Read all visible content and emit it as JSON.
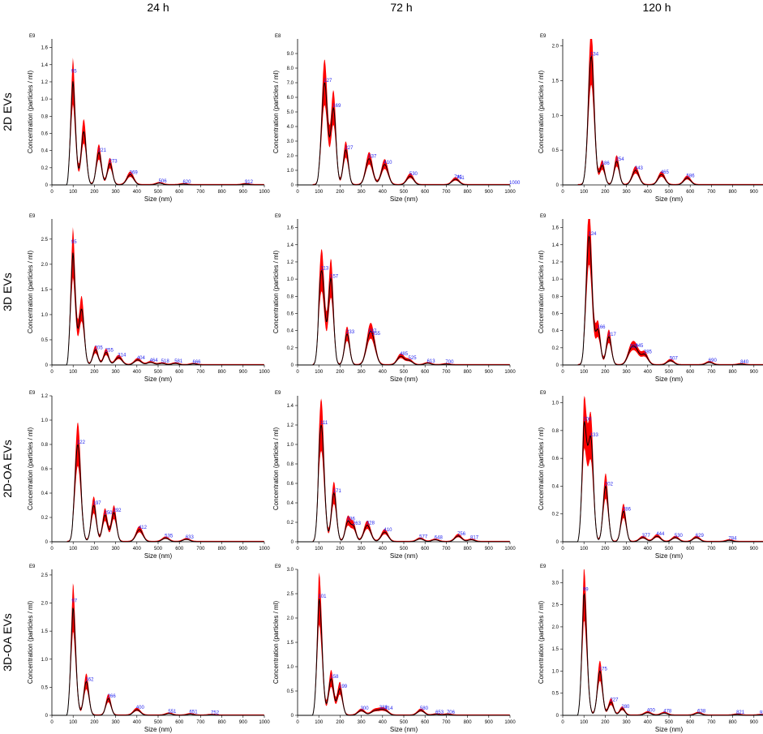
{
  "figure": {
    "columns": [
      "24 h",
      "72 h",
      "120 h"
    ],
    "rows": [
      "2D EVs",
      "3D EVs",
      "2D-OA EVs",
      "3D-OA EVs"
    ]
  },
  "chart_data": [
    {
      "type": "line",
      "row": 0,
      "col": 0,
      "xlabel": "Size (nm)",
      "ylabel": "Concentration (particles / ml)",
      "exponent": "E9",
      "xlim": [
        0,
        1000
      ],
      "ylim": [
        0,
        1.7
      ],
      "yticks": [
        0,
        0.2,
        0.4,
        0.6,
        0.8,
        1.0,
        1.2,
        1.4,
        1.6
      ],
      "peaks": [
        [
          95,
          1.3,
          "95"
        ],
        [
          150,
          0.62,
          ""
        ],
        [
          221,
          0.38,
          "221"
        ],
        [
          273,
          0.25,
          "273"
        ],
        [
          369,
          0.12,
          "369"
        ],
        [
          506,
          0.02,
          "506"
        ],
        [
          620,
          0.01,
          "620"
        ],
        [
          912,
          0.01,
          "912"
        ]
      ],
      "peak_labels": [
        [
          95,
          1.3,
          "95"
        ],
        [
          221,
          0.38,
          "221"
        ],
        [
          273,
          0.25,
          "273"
        ],
        [
          369,
          0.12,
          "369"
        ],
        [
          506,
          0.02,
          "506"
        ],
        [
          620,
          0.01,
          "620"
        ],
        [
          912,
          0.01,
          "912"
        ]
      ]
    },
    {
      "type": "line",
      "row": 0,
      "col": 1,
      "xlabel": "Size (nm)",
      "ylabel": "Concentration (particles / ml)",
      "exponent": "E8",
      "xlim": [
        0,
        1000
      ],
      "ylim": [
        0,
        10
      ],
      "yticks": [
        0,
        1.0,
        2.0,
        3.0,
        4.0,
        5.0,
        6.0,
        7.0,
        8.0,
        9.0
      ],
      "peaks": [
        [
          127,
          7.0,
          ""
        ],
        [
          169,
          5.2,
          ""
        ],
        [
          227,
          2.4,
          ""
        ],
        [
          337,
          1.8,
          ""
        ],
        [
          410,
          1.4,
          ""
        ],
        [
          530,
          0.6,
          ""
        ],
        [
          741,
          0.3,
          ""
        ],
        [
          751,
          0.1,
          ""
        ],
        [
          1000,
          0.0,
          ""
        ]
      ],
      "peak_labels": [
        [
          127,
          7.0,
          "127"
        ],
        [
          169,
          5.2,
          "169"
        ],
        [
          227,
          2.4,
          "227"
        ],
        [
          337,
          1.8,
          "337"
        ],
        [
          410,
          1.4,
          "410"
        ],
        [
          530,
          0.6,
          "530"
        ],
        [
          741,
          0.3,
          "741"
        ],
        [
          751,
          0.1,
          "751"
        ],
        [
          1000,
          0.0,
          "1000"
        ]
      ]
    },
    {
      "type": "line",
      "row": 0,
      "col": 2,
      "xlabel": "Size (nm)",
      "ylabel": "Concentration (particles / ml)",
      "exponent": "E9",
      "xlim": [
        0,
        1000
      ],
      "ylim": [
        0,
        2.1
      ],
      "yticks": [
        0,
        0.5,
        1.0,
        1.5,
        2.0
      ],
      "peaks": [
        [
          134,
          1.85,
          ""
        ],
        [
          186,
          0.28,
          ""
        ],
        [
          254,
          0.34,
          ""
        ],
        [
          343,
          0.21,
          ""
        ],
        [
          465,
          0.15,
          ""
        ],
        [
          586,
          0.1,
          ""
        ],
        [
          1000,
          0.0,
          ""
        ]
      ],
      "peak_labels": [
        [
          134,
          1.85,
          "134"
        ],
        [
          186,
          0.28,
          "186"
        ],
        [
          254,
          0.34,
          "254"
        ],
        [
          343,
          0.21,
          "343"
        ],
        [
          465,
          0.15,
          "465"
        ],
        [
          586,
          0.1,
          "586"
        ],
        [
          1000,
          0.0,
          "1000"
        ]
      ]
    },
    {
      "type": "line",
      "row": 1,
      "col": 0,
      "xlabel": "Size (nm)",
      "ylabel": "Concentration (particles / ml)",
      "exponent": "E9",
      "xlim": [
        0,
        1000
      ],
      "ylim": [
        0,
        2.9
      ],
      "yticks": [
        0,
        0.5,
        1.0,
        1.5,
        2.0,
        2.5
      ],
      "peaks": [
        [
          95,
          2.4,
          ""
        ],
        [
          140,
          1.1,
          ""
        ],
        [
          205,
          0.3,
          ""
        ],
        [
          255,
          0.25,
          ""
        ],
        [
          314,
          0.15,
          ""
        ],
        [
          404,
          0.1,
          ""
        ],
        [
          464,
          0.05,
          ""
        ],
        [
          518,
          0.03,
          ""
        ],
        [
          581,
          0.03,
          ""
        ],
        [
          666,
          0.02,
          ""
        ]
      ],
      "peak_labels": [
        [
          95,
          2.4,
          "95"
        ],
        [
          205,
          0.3,
          "205"
        ],
        [
          255,
          0.25,
          "255"
        ],
        [
          314,
          0.15,
          "314"
        ],
        [
          404,
          0.1,
          "404"
        ],
        [
          464,
          0.05,
          "464"
        ],
        [
          518,
          0.03,
          "518"
        ],
        [
          581,
          0.03,
          "581"
        ],
        [
          666,
          0.02,
          "666"
        ]
      ]
    },
    {
      "type": "line",
      "row": 1,
      "col": 1,
      "xlabel": "Size (nm)",
      "ylabel": "Concentration (particles / ml)",
      "exponent": "E9",
      "xlim": [
        0,
        1000
      ],
      "ylim": [
        0,
        1.7
      ],
      "yticks": [
        0,
        0.2,
        0.4,
        0.6,
        0.8,
        1.0,
        1.2,
        1.4,
        1.6
      ],
      "peaks": [
        [
          113,
          1.1,
          ""
        ],
        [
          157,
          1.0,
          ""
        ],
        [
          233,
          0.36,
          ""
        ],
        [
          337,
          0.26,
          ""
        ],
        [
          355,
          0.2,
          ""
        ],
        [
          485,
          0.1,
          ""
        ],
        [
          525,
          0.05,
          ""
        ],
        [
          613,
          0.02,
          ""
        ],
        [
          700,
          0.01,
          ""
        ]
      ],
      "peak_labels": [
        [
          113,
          1.1,
          "113"
        ],
        [
          157,
          1.0,
          "157"
        ],
        [
          233,
          0.36,
          "233"
        ],
        [
          337,
          0.26,
          "337"
        ],
        [
          355,
          0.2,
          "355"
        ],
        [
          485,
          0.1,
          "485"
        ],
        [
          525,
          0.05,
          "525"
        ],
        [
          613,
          0.02,
          "613"
        ],
        [
          700,
          0.01,
          "700"
        ]
      ]
    },
    {
      "type": "line",
      "row": 1,
      "col": 2,
      "xlabel": "Size (nm)",
      "ylabel": "Concentration (particles / ml)",
      "exponent": "E9",
      "xlim": [
        0,
        1000
      ],
      "ylim": [
        0,
        1.7
      ],
      "yticks": [
        0,
        0.2,
        0.4,
        0.6,
        0.8,
        1.0,
        1.2,
        1.4,
        1.6
      ],
      "peaks": [
        [
          124,
          1.5,
          ""
        ],
        [
          166,
          0.4,
          ""
        ],
        [
          217,
          0.33,
          ""
        ],
        [
          320,
          0.15,
          ""
        ],
        [
          345,
          0.15,
          ""
        ],
        [
          385,
          0.12,
          ""
        ],
        [
          507,
          0.05,
          ""
        ],
        [
          690,
          0.03,
          ""
        ],
        [
          840,
          0.01,
          ""
        ]
      ],
      "peak_labels": [
        [
          124,
          1.5,
          "124"
        ],
        [
          166,
          0.4,
          "166"
        ],
        [
          217,
          0.33,
          "217"
        ],
        [
          320,
          0.15,
          "320"
        ],
        [
          345,
          0.15,
          "345"
        ],
        [
          385,
          0.12,
          "385"
        ],
        [
          507,
          0.05,
          "507"
        ],
        [
          690,
          0.03,
          "690"
        ],
        [
          840,
          0.01,
          "840"
        ]
      ]
    },
    {
      "type": "line",
      "row": 2,
      "col": 0,
      "xlabel": "Size (nm)",
      "ylabel": "Concentration (particles / ml)",
      "exponent": "E9",
      "xlim": [
        0,
        1000
      ],
      "ylim": [
        0,
        1.2
      ],
      "yticks": [
        0,
        0.2,
        0.4,
        0.6,
        0.8,
        1.0,
        1.2
      ],
      "peaks": [
        [
          122,
          0.8,
          ""
        ],
        [
          197,
          0.3,
          ""
        ],
        [
          250,
          0.22,
          ""
        ],
        [
          292,
          0.24,
          ""
        ],
        [
          412,
          0.1,
          ""
        ],
        [
          535,
          0.03,
          ""
        ],
        [
          633,
          0.02,
          ""
        ]
      ],
      "peak_labels": [
        [
          122,
          0.8,
          "122"
        ],
        [
          197,
          0.3,
          "197"
        ],
        [
          250,
          0.22,
          "250"
        ],
        [
          292,
          0.24,
          "292"
        ],
        [
          412,
          0.1,
          "412"
        ],
        [
          535,
          0.03,
          "535"
        ],
        [
          633,
          0.02,
          "633"
        ]
      ]
    },
    {
      "type": "line",
      "row": 2,
      "col": 1,
      "xlabel": "Size (nm)",
      "ylabel": "Concentration (particles / ml)",
      "exponent": "E9",
      "xlim": [
        0,
        1000
      ],
      "ylim": [
        0,
        1.5
      ],
      "yticks": [
        0,
        0.2,
        0.4,
        0.6,
        0.8,
        1.0,
        1.2,
        1.4
      ],
      "peaks": [
        [
          111,
          1.2,
          ""
        ],
        [
          171,
          0.5,
          ""
        ],
        [
          236,
          0.2,
          ""
        ],
        [
          263,
          0.15,
          ""
        ],
        [
          328,
          0.17,
          ""
        ],
        [
          410,
          0.1,
          ""
        ],
        [
          577,
          0.03,
          ""
        ],
        [
          648,
          0.02,
          ""
        ],
        [
          756,
          0.06,
          ""
        ],
        [
          817,
          0.02,
          ""
        ]
      ],
      "peak_labels": [
        [
          111,
          1.2,
          "111"
        ],
        [
          171,
          0.5,
          "171"
        ],
        [
          236,
          0.3,
          "236"
        ],
        [
          263,
          0.15,
          "263"
        ],
        [
          328,
          0.17,
          "328"
        ],
        [
          410,
          0.1,
          "410"
        ],
        [
          577,
          0.03,
          "577"
        ],
        [
          648,
          0.02,
          "648"
        ],
        [
          756,
          0.06,
          "756"
        ],
        [
          817,
          0.02,
          "817"
        ]
      ]
    },
    {
      "type": "line",
      "row": 2,
      "col": 2,
      "xlabel": "Size (nm)",
      "ylabel": "Concentration (particles / ml)",
      "exponent": "E9",
      "xlim": [
        0,
        1000
      ],
      "ylim": [
        0,
        1.05
      ],
      "yticks": [
        0,
        0.2,
        0.4,
        0.6,
        0.8,
        1.0
      ],
      "peaks": [
        [
          100,
          0.85,
          ""
        ],
        [
          133,
          0.7,
          ""
        ],
        [
          202,
          0.4,
          ""
        ],
        [
          286,
          0.22,
          ""
        ],
        [
          377,
          0.03,
          ""
        ],
        [
          444,
          0.04,
          ""
        ],
        [
          530,
          0.03,
          ""
        ],
        [
          629,
          0.03,
          ""
        ],
        [
          784,
          0.01,
          ""
        ],
        [
          1000,
          0.05,
          ""
        ]
      ],
      "peak_labels": [
        [
          100,
          0.85,
          "100"
        ],
        [
          133,
          0.7,
          "133"
        ],
        [
          202,
          0.4,
          "202"
        ],
        [
          286,
          0.22,
          "286"
        ],
        [
          377,
          0.03,
          "377"
        ],
        [
          444,
          0.04,
          "444"
        ],
        [
          530,
          0.03,
          "530"
        ],
        [
          629,
          0.03,
          "629"
        ],
        [
          784,
          0.01,
          "784"
        ],
        [
          1000,
          0.05,
          "1000"
        ]
      ]
    },
    {
      "type": "line",
      "row": 3,
      "col": 0,
      "xlabel": "Size (nm)",
      "ylabel": "Concentration (particles / ml)",
      "exponent": "E9",
      "xlim": [
        0,
        1000
      ],
      "ylim": [
        0,
        2.6
      ],
      "yticks": [
        0,
        0.5,
        1.0,
        1.5,
        2.0,
        2.5
      ],
      "peaks": [
        [
          97,
          2.0,
          ""
        ],
        [
          162,
          0.6,
          ""
        ],
        [
          266,
          0.3,
          ""
        ],
        [
          400,
          0.1,
          ""
        ],
        [
          551,
          0.03,
          ""
        ],
        [
          651,
          0.02,
          ""
        ],
        [
          752,
          0.01,
          ""
        ]
      ],
      "peak_labels": [
        [
          97,
          2.0,
          "97"
        ],
        [
          162,
          0.6,
          "162"
        ],
        [
          266,
          0.3,
          "266"
        ],
        [
          400,
          0.1,
          "400"
        ],
        [
          551,
          0.03,
          "551"
        ],
        [
          651,
          0.02,
          "651"
        ],
        [
          752,
          0.01,
          "752"
        ]
      ]
    },
    {
      "type": "line",
      "row": 3,
      "col": 1,
      "xlabel": "Size (nm)",
      "ylabel": "Concentration (particles / ml)",
      "exponent": "E9",
      "xlim": [
        0,
        1000
      ],
      "ylim": [
        0,
        3.0
      ],
      "yticks": [
        0,
        0.5,
        1.0,
        1.5,
        2.0,
        2.5,
        3.0
      ],
      "peaks": [
        [
          101,
          2.4,
          ""
        ],
        [
          158,
          0.75,
          ""
        ],
        [
          199,
          0.55,
          ""
        ],
        [
          300,
          0.1,
          ""
        ],
        [
          360,
          0.08,
          ""
        ],
        [
          389,
          0.08,
          ""
        ],
        [
          414,
          0.08,
          ""
        ],
        [
          580,
          0.1,
          ""
        ],
        [
          653,
          0.02,
          ""
        ],
        [
          706,
          0.02,
          ""
        ]
      ],
      "peak_labels": [
        [
          101,
          2.4,
          "101"
        ],
        [
          158,
          0.75,
          "158"
        ],
        [
          199,
          0.55,
          "199"
        ],
        [
          300,
          0.1,
          "300"
        ],
        [
          389,
          0.08,
          "389"
        ],
        [
          414,
          0.08,
          "414"
        ],
        [
          580,
          0.1,
          "580"
        ],
        [
          653,
          0.02,
          "653"
        ],
        [
          706,
          0.02,
          "706"
        ]
      ]
    },
    {
      "type": "line",
      "row": 3,
      "col": 2,
      "xlabel": "Size (nm)",
      "ylabel": "Concentration (particles / ml)",
      "exponent": "E9",
      "xlim": [
        0,
        1000
      ],
      "ylim": [
        0,
        3.3
      ],
      "yticks": [
        0,
        0.5,
        1.0,
        1.5,
        2.0,
        2.5,
        3.0
      ],
      "peaks": [
        [
          99,
          2.8,
          ""
        ],
        [
          175,
          1.0,
          ""
        ],
        [
          227,
          0.3,
          ""
        ],
        [
          280,
          0.15,
          ""
        ],
        [
          400,
          0.06,
          ""
        ],
        [
          478,
          0.05,
          ""
        ],
        [
          638,
          0.05,
          ""
        ],
        [
          821,
          0.02,
          ""
        ],
        [
          931,
          0.01,
          ""
        ],
        [
          1000,
          0.01,
          ""
        ]
      ],
      "peak_labels": [
        [
          99,
          2.8,
          "99"
        ],
        [
          175,
          1.0,
          "175"
        ],
        [
          227,
          0.3,
          "227"
        ],
        [
          280,
          0.15,
          "280"
        ],
        [
          400,
          0.06,
          "400"
        ],
        [
          478,
          0.05,
          "478"
        ],
        [
          638,
          0.05,
          "638"
        ],
        [
          821,
          0.02,
          "821"
        ],
        [
          931,
          0.01,
          "931"
        ],
        [
          1000,
          0.01,
          "1000"
        ]
      ]
    }
  ]
}
